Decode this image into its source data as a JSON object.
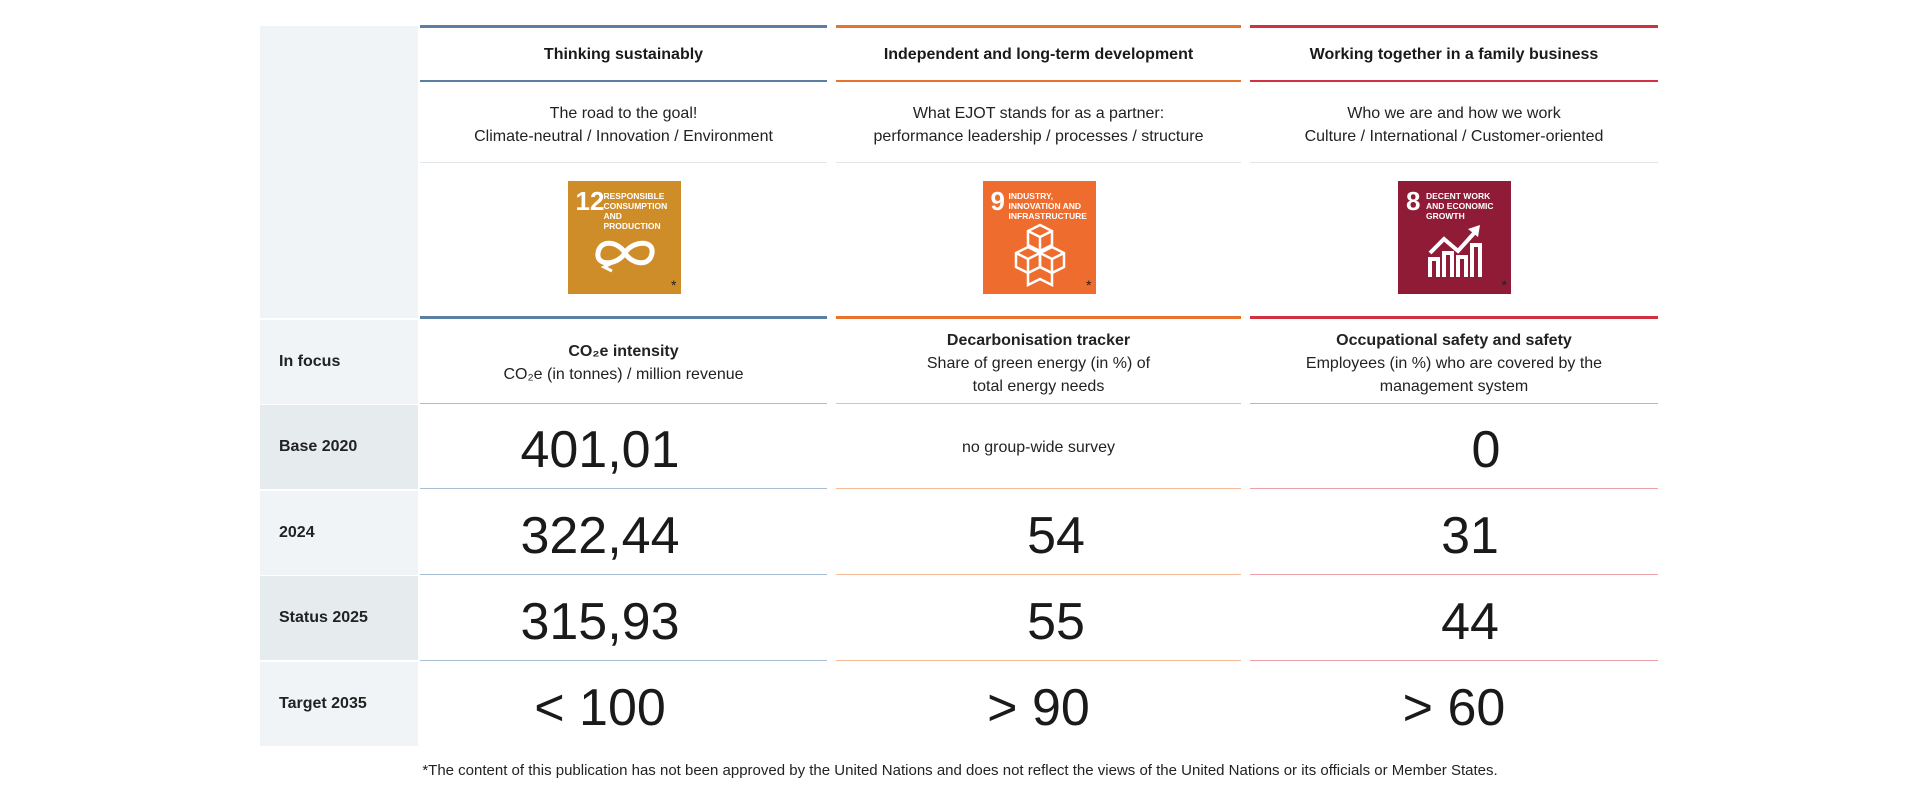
{
  "columns": [
    {
      "title": "Thinking sustainably",
      "subtitle_line1": "The road to the goal!",
      "subtitle_line2": "Climate-neutral / Innovation / Environment",
      "color": "#5a7fa3",
      "light_color": "#a9bfd3",
      "sdg": {
        "number": "12",
        "text": "RESPONSIBLE CONSUMPTION AND PRODUCTION",
        "icon": "infinity-icon",
        "bg": "#cf8d2a"
      },
      "focus_title": "CO₂e intensity",
      "focus_line1": "CO₂e (in tonnes) / million revenue",
      "focus_line2": "",
      "base_2020": "401,01",
      "y2024": "322,44",
      "status_2025": "315,93",
      "target_2035": "< 100"
    },
    {
      "title": "Independent and long-term development",
      "subtitle_line1": "What EJOT stands for as a partner:",
      "subtitle_line2": "performance leadership / processes / structure",
      "color": "#e8732f",
      "light_color": "#f3bb98",
      "sdg": {
        "number": "9",
        "text": "INDUSTRY, INNOVATION AND INFRASTRUCTURE",
        "icon": "cubes-icon",
        "bg": "#ee6c2d"
      },
      "focus_title": "Decarbonisation tracker",
      "focus_line1": "Share of green energy (in %) of",
      "focus_line2": "total energy needs",
      "base_2020": "no group-wide survey",
      "y2024": "54",
      "status_2025": "55",
      "target_2035": "> 90"
    },
    {
      "title": "Working together in a family business",
      "subtitle_line1": "Who we are and how we work",
      "subtitle_line2": "Culture / International / Customer-oriented",
      "color": "#d2323f",
      "light_color": "#eba1a7",
      "sdg": {
        "number": "8",
        "text": "DECENT WORK AND ECONOMIC GROWTH",
        "icon": "growth-chart-icon",
        "bg": "#8f1b36"
      },
      "focus_title": "Occupational safety and safety",
      "focus_line1": "Employees (in %) who are covered by the",
      "focus_line2": "management system",
      "base_2020": "0",
      "y2024": "31",
      "status_2025": "44",
      "target_2035": "> 60"
    }
  ],
  "row_labels": {
    "in_focus": "In focus",
    "base_2020": "Base 2020",
    "y2024": "2024",
    "status_2025": "Status 2025",
    "target_2035": "Target 2035"
  },
  "sdg_star": "*",
  "footnote": "*The content of this publication has not been approved by the United Nations and does not reflect the views of the United Nations or its officials or Member States."
}
